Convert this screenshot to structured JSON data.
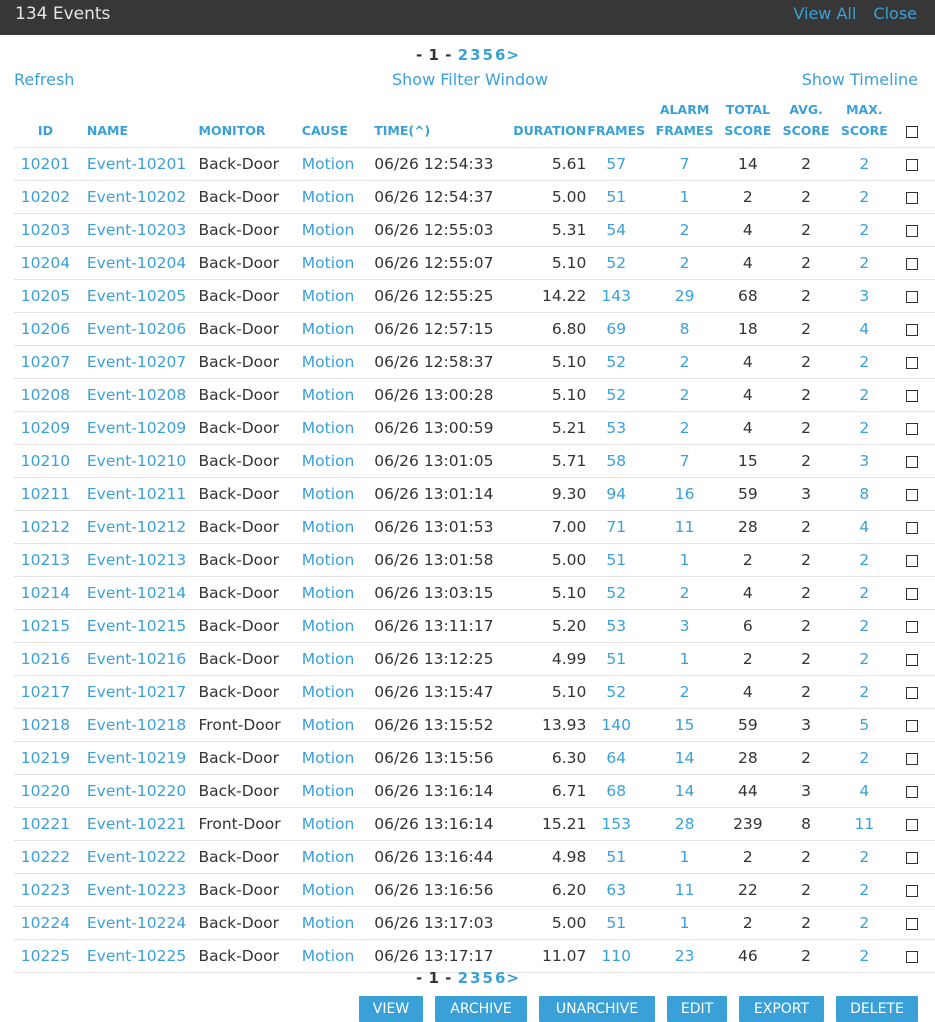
{
  "header": {
    "title": "134 Events",
    "view_all": "View All",
    "close": "Close"
  },
  "pagination": {
    "prefix": "- ",
    "current": "1",
    "dash": " -",
    "pages": [
      "2",
      "3",
      "5",
      "6"
    ],
    "next": ">"
  },
  "toolbar": {
    "refresh": "Refresh",
    "filter": "Show Filter Window",
    "timeline": "Show Timeline"
  },
  "columns": {
    "id": "ID",
    "name": "NAME",
    "monitor": "MONITOR",
    "cause": "CAUSE",
    "time": "TIME(^)",
    "duration": "DURATION",
    "frames": "FRAMES",
    "alarm_frames_1": "ALARM",
    "alarm_frames_2": "FRAMES",
    "total_score_1": "TOTAL",
    "total_score_2": "SCORE",
    "avg_score_1": "AVG.",
    "avg_score_2": "SCORE",
    "max_score_1": "MAX.",
    "max_score_2": "SCORE"
  },
  "rows": [
    {
      "id": "10201",
      "name": "Event-10201",
      "monitor": "Back-Door",
      "cause": "Motion",
      "time": "06/26 12:54:33",
      "duration": "5.61",
      "frames": "57",
      "alarm": "7",
      "total": "14",
      "avg": "2",
      "max": "2"
    },
    {
      "id": "10202",
      "name": "Event-10202",
      "monitor": "Back-Door",
      "cause": "Motion",
      "time": "06/26 12:54:37",
      "duration": "5.00",
      "frames": "51",
      "alarm": "1",
      "total": "2",
      "avg": "2",
      "max": "2"
    },
    {
      "id": "10203",
      "name": "Event-10203",
      "monitor": "Back-Door",
      "cause": "Motion",
      "time": "06/26 12:55:03",
      "duration": "5.31",
      "frames": "54",
      "alarm": "2",
      "total": "4",
      "avg": "2",
      "max": "2"
    },
    {
      "id": "10204",
      "name": "Event-10204",
      "monitor": "Back-Door",
      "cause": "Motion",
      "time": "06/26 12:55:07",
      "duration": "5.10",
      "frames": "52",
      "alarm": "2",
      "total": "4",
      "avg": "2",
      "max": "2"
    },
    {
      "id": "10205",
      "name": "Event-10205",
      "monitor": "Back-Door",
      "cause": "Motion",
      "time": "06/26 12:55:25",
      "duration": "14.22",
      "frames": "143",
      "alarm": "29",
      "total": "68",
      "avg": "2",
      "max": "3"
    },
    {
      "id": "10206",
      "name": "Event-10206",
      "monitor": "Back-Door",
      "cause": "Motion",
      "time": "06/26 12:57:15",
      "duration": "6.80",
      "frames": "69",
      "alarm": "8",
      "total": "18",
      "avg": "2",
      "max": "4"
    },
    {
      "id": "10207",
      "name": "Event-10207",
      "monitor": "Back-Door",
      "cause": "Motion",
      "time": "06/26 12:58:37",
      "duration": "5.10",
      "frames": "52",
      "alarm": "2",
      "total": "4",
      "avg": "2",
      "max": "2"
    },
    {
      "id": "10208",
      "name": "Event-10208",
      "monitor": "Back-Door",
      "cause": "Motion",
      "time": "06/26 13:00:28",
      "duration": "5.10",
      "frames": "52",
      "alarm": "2",
      "total": "4",
      "avg": "2",
      "max": "2"
    },
    {
      "id": "10209",
      "name": "Event-10209",
      "monitor": "Back-Door",
      "cause": "Motion",
      "time": "06/26 13:00:59",
      "duration": "5.21",
      "frames": "53",
      "alarm": "2",
      "total": "4",
      "avg": "2",
      "max": "2"
    },
    {
      "id": "10210",
      "name": "Event-10210",
      "monitor": "Back-Door",
      "cause": "Motion",
      "time": "06/26 13:01:05",
      "duration": "5.71",
      "frames": "58",
      "alarm": "7",
      "total": "15",
      "avg": "2",
      "max": "3"
    },
    {
      "id": "10211",
      "name": "Event-10211",
      "monitor": "Back-Door",
      "cause": "Motion",
      "time": "06/26 13:01:14",
      "duration": "9.30",
      "frames": "94",
      "alarm": "16",
      "total": "59",
      "avg": "3",
      "max": "8"
    },
    {
      "id": "10212",
      "name": "Event-10212",
      "monitor": "Back-Door",
      "cause": "Motion",
      "time": "06/26 13:01:53",
      "duration": "7.00",
      "frames": "71",
      "alarm": "11",
      "total": "28",
      "avg": "2",
      "max": "4"
    },
    {
      "id": "10213",
      "name": "Event-10213",
      "monitor": "Back-Door",
      "cause": "Motion",
      "time": "06/26 13:01:58",
      "duration": "5.00",
      "frames": "51",
      "alarm": "1",
      "total": "2",
      "avg": "2",
      "max": "2"
    },
    {
      "id": "10214",
      "name": "Event-10214",
      "monitor": "Back-Door",
      "cause": "Motion",
      "time": "06/26 13:03:15",
      "duration": "5.10",
      "frames": "52",
      "alarm": "2",
      "total": "4",
      "avg": "2",
      "max": "2"
    },
    {
      "id": "10215",
      "name": "Event-10215",
      "monitor": "Back-Door",
      "cause": "Motion",
      "time": "06/26 13:11:17",
      "duration": "5.20",
      "frames": "53",
      "alarm": "3",
      "total": "6",
      "avg": "2",
      "max": "2"
    },
    {
      "id": "10216",
      "name": "Event-10216",
      "monitor": "Back-Door",
      "cause": "Motion",
      "time": "06/26 13:12:25",
      "duration": "4.99",
      "frames": "51",
      "alarm": "1",
      "total": "2",
      "avg": "2",
      "max": "2"
    },
    {
      "id": "10217",
      "name": "Event-10217",
      "monitor": "Back-Door",
      "cause": "Motion",
      "time": "06/26 13:15:47",
      "duration": "5.10",
      "frames": "52",
      "alarm": "2",
      "total": "4",
      "avg": "2",
      "max": "2"
    },
    {
      "id": "10218",
      "name": "Event-10218",
      "monitor": "Front-Door",
      "cause": "Motion",
      "time": "06/26 13:15:52",
      "duration": "13.93",
      "frames": "140",
      "alarm": "15",
      "total": "59",
      "avg": "3",
      "max": "5"
    },
    {
      "id": "10219",
      "name": "Event-10219",
      "monitor": "Back-Door",
      "cause": "Motion",
      "time": "06/26 13:15:56",
      "duration": "6.30",
      "frames": "64",
      "alarm": "14",
      "total": "28",
      "avg": "2",
      "max": "2"
    },
    {
      "id": "10220",
      "name": "Event-10220",
      "monitor": "Back-Door",
      "cause": "Motion",
      "time": "06/26 13:16:14",
      "duration": "6.71",
      "frames": "68",
      "alarm": "14",
      "total": "44",
      "avg": "3",
      "max": "4"
    },
    {
      "id": "10221",
      "name": "Event-10221",
      "monitor": "Front-Door",
      "cause": "Motion",
      "time": "06/26 13:16:14",
      "duration": "15.21",
      "frames": "153",
      "alarm": "28",
      "total": "239",
      "avg": "8",
      "max": "11"
    },
    {
      "id": "10222",
      "name": "Event-10222",
      "monitor": "Back-Door",
      "cause": "Motion",
      "time": "06/26 13:16:44",
      "duration": "4.98",
      "frames": "51",
      "alarm": "1",
      "total": "2",
      "avg": "2",
      "max": "2"
    },
    {
      "id": "10223",
      "name": "Event-10223",
      "monitor": "Back-Door",
      "cause": "Motion",
      "time": "06/26 13:16:56",
      "duration": "6.20",
      "frames": "63",
      "alarm": "11",
      "total": "22",
      "avg": "2",
      "max": "2"
    },
    {
      "id": "10224",
      "name": "Event-10224",
      "monitor": "Back-Door",
      "cause": "Motion",
      "time": "06/26 13:17:03",
      "duration": "5.00",
      "frames": "51",
      "alarm": "1",
      "total": "2",
      "avg": "2",
      "max": "2"
    },
    {
      "id": "10225",
      "name": "Event-10225",
      "monitor": "Back-Door",
      "cause": "Motion",
      "time": "06/26 13:17:17",
      "duration": "11.07",
      "frames": "110",
      "alarm": "23",
      "total": "46",
      "avg": "2",
      "max": "2"
    }
  ],
  "actions": {
    "view": "VIEW",
    "archive": "ARCHIVE",
    "unarchive": "UNARCHIVE",
    "edit": "EDIT",
    "export": "EXPORT",
    "delete": "DELETE"
  },
  "colors": {
    "accent": "#3aa0d8",
    "topbar": "#373737"
  }
}
